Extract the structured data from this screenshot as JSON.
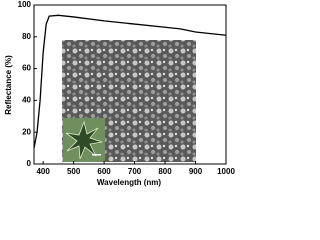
{
  "chart_data": {
    "type": "line",
    "x_label": "Wavelength (nm)",
    "y_label": "Reflectance (%)",
    "x": [
      370,
      380,
      390,
      400,
      410,
      420,
      450,
      500,
      600,
      700,
      800,
      850,
      900,
      950,
      1000
    ],
    "values": [
      10,
      20,
      40,
      70,
      88,
      93,
      93.5,
      92.5,
      90,
      88,
      86,
      85,
      83,
      82,
      81
    ],
    "color": "#000000",
    "xlim": [
      370,
      1000
    ],
    "ylim": [
      0,
      100
    ],
    "xticks": [
      400,
      500,
      600,
      700,
      800,
      900,
      1000
    ],
    "yticks": [
      0,
      20,
      40,
      60,
      80,
      100
    ]
  }
}
